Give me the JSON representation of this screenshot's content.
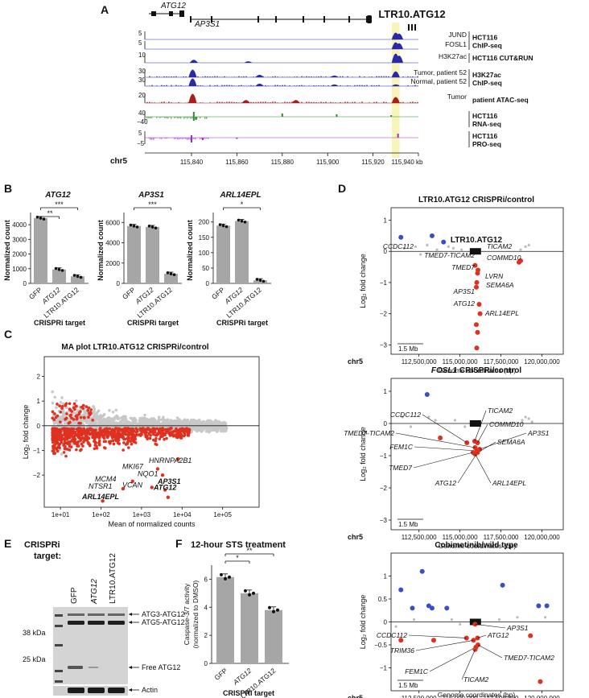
{
  "panels": {
    "A": {
      "label": "A",
      "genes": {
        "atg12": "ATG12",
        "ap3s1": "AP3S1"
      },
      "element": "LTR10.ATG12",
      "chrom": "chr5",
      "x_ticks": [
        "115,840",
        "115,860",
        "115,880",
        "115,900",
        "115,920",
        "115,940 kb"
      ],
      "x_values_kb": [
        115840,
        115860,
        115880,
        115900,
        115920,
        115940
      ],
      "highlight_kb": [
        115929,
        115931
      ],
      "tracks": [
        {
          "scale": "5",
          "name": "JUND",
          "group": "HCT116",
          "group2": "ChIP-seq",
          "color": "#2a2aa8"
        },
        {
          "scale": "5",
          "name": "FOSL1",
          "color": "#2a2aa8"
        },
        {
          "scale": "10",
          "name": "H3K27ac",
          "group": "HCT116 CUT&RUN",
          "color": "#2a2aa8"
        },
        {
          "scale": "30",
          "name": "Tumor, patient 52",
          "group": "H3K27ac",
          "group2": "ChIP-seq",
          "color": "#2a2aa8"
        },
        {
          "scale": "30",
          "name": "Normal, patient 52",
          "color": "#2a2aa8"
        },
        {
          "scale": "20",
          "name": "Tumor",
          "group": "patient ATAC-seq",
          "color": "#a81e1e"
        },
        {
          "scale": "40",
          "scale_neg": "−40",
          "group": "HCT116",
          "group2": "RNA-seq",
          "color": "#2e8b2e"
        },
        {
          "scale": "5",
          "scale_neg": "−5",
          "group": "HCT116",
          "group2": "PRO-seq",
          "color": "#9b30c8"
        }
      ]
    },
    "B": {
      "label": "B",
      "ylabel": "Normalized count",
      "xtitle": "CRISPRi target",
      "groups": [
        "GFP",
        "ATG12",
        "LTR10.ATG12"
      ],
      "charts": [
        {
          "title": "ATG12",
          "ylim": [
            0,
            4500
          ],
          "ticks": [
            "0",
            "1000",
            "2000",
            "3000",
            "4000"
          ],
          "tick_values": [
            0,
            1000,
            2000,
            3000,
            4000
          ],
          "values": [
            4450,
            950,
            480
          ],
          "sig": [
            "**",
            "***"
          ]
        },
        {
          "title": "AP3S1",
          "ylim": [
            0,
            6500
          ],
          "ticks": [
            "0",
            "2000",
            "4000",
            "6000"
          ],
          "tick_values": [
            0,
            2000,
            4000,
            6000
          ],
          "values": [
            5650,
            5550,
            950
          ],
          "sig": [
            "***"
          ]
        },
        {
          "title": "ARL14EPL",
          "ylim": [
            0,
            215
          ],
          "ticks": [
            "0",
            "50",
            "100",
            "150",
            "200"
          ],
          "tick_values": [
            0,
            50,
            100,
            150,
            200
          ],
          "values": [
            188,
            203,
            10
          ],
          "sig": [
            "*"
          ]
        }
      ]
    },
    "C": {
      "label": "C",
      "title": "MA plot LTR10.ATG12 CRISPRi/control",
      "xlabel": "Mean of normalized counts",
      "ylabel": "Log₂ fold change",
      "x_ticks": [
        "1e+01",
        "1e+02",
        "1e+03",
        "1e+04",
        "1e+05"
      ],
      "y_ticks": [
        "−2",
        "−1",
        "0",
        "1",
        "2"
      ],
      "genes": [
        {
          "name": "HNRNPA2B1",
          "bold": false,
          "x": 8000,
          "y": -1.35
        },
        {
          "name": "MKI67",
          "bold": false,
          "x": 2500,
          "y": -1.75
        },
        {
          "name": "NQO1",
          "bold": false,
          "x": 3300,
          "y": -2.0
        },
        {
          "name": "MCM4",
          "bold": false,
          "x": 600,
          "y": -2.25
        },
        {
          "name": "VCAN",
          "bold": false,
          "x": 1800,
          "y": -2.5
        },
        {
          "name": "NTSR1",
          "bold": false,
          "x": 350,
          "y": -2.55
        },
        {
          "name": "AP3S1",
          "bold": true,
          "x": 3800,
          "y": -2.6
        },
        {
          "name": "ATG12",
          "bold": true,
          "x": 4500,
          "y": -2.9
        },
        {
          "name": "ARL14EPL",
          "bold": true,
          "x": 110,
          "y": -3.05
        }
      ]
    },
    "D": {
      "label": "D",
      "chrom": "chr5",
      "xlabel": "Genome coordinates (bp)",
      "ylabel": "Log₂ fold change",
      "scale_bar": "1.5 Mb",
      "x_ticks": [
        "112,500,000",
        "115,000,000",
        "117,500,000",
        "120,000,000"
      ],
      "subplots": [
        {
          "title": "LTR10.ATG12 CRISPRi/control",
          "element_label": "LTR10.ATG12",
          "y_ticks": [
            "−3",
            "−2",
            "−1",
            "0",
            "1"
          ],
          "genes": [
            "CCDC112",
            "TICAM2",
            "TMED7-TICAM2",
            "COMMD10",
            "TMED7",
            "LVRN",
            "SEMA6A",
            "AP3S1",
            "ATG12",
            "ARL14EPL"
          ]
        },
        {
          "title": "FOSL1 CRISPRi/control",
          "title_italic": "FOSL1",
          "title_rest": " CRISPRi/control",
          "y_ticks": [
            "−3",
            "−2",
            "−1",
            "0",
            "1"
          ],
          "genes": [
            "CCDC112",
            "TICAM2",
            "COMMD10",
            "TMED7-TICAM2",
            "AP3S1",
            "FEM1C",
            "SEMA6A",
            "TMED7",
            "ATG12",
            "ARL14EPL"
          ]
        },
        {
          "title": "Cobimetinib/wild type",
          "y_ticks": [
            "−1",
            "−0.5",
            "0",
            "0.5",
            "1"
          ],
          "genes": [
            "AP3S1",
            "CCDC112",
            "ATG12",
            "TRIM36",
            "TMED7-TICAM2",
            "FEM1C",
            "TICAM2"
          ]
        }
      ]
    },
    "E": {
      "label": "E",
      "title_line1": "CRISPRi",
      "title_line2": "target:",
      "lanes": [
        "GFP",
        "ATG12",
        "LTR10.ATG12"
      ],
      "markers": [
        "38 kDa",
        "25 kDa"
      ],
      "bands": [
        "ATG3-ATG12",
        "ATG5-ATG12",
        "Free ATG12",
        "Actin"
      ]
    },
    "F": {
      "label": "F",
      "title": "12-hour STS treatment",
      "ylabel_line1": "Caspase-3/7 activity",
      "ylabel_line2": "(normalized to DMSO)",
      "xtitle": "CRISPRi target",
      "groups": [
        "GFP",
        "ATG12",
        "LTR10.ATG12"
      ],
      "values": [
        6.15,
        5.0,
        3.8
      ],
      "ylim": [
        0,
        7
      ],
      "ticks": [
        "0",
        "2",
        "4",
        "6"
      ],
      "tick_values": [
        0,
        2,
        4,
        6
      ],
      "sig": [
        "*",
        "**"
      ]
    }
  },
  "chart_data": [
    {
      "type": "bar",
      "title": "ATG12",
      "categories": [
        "GFP",
        "ATG12",
        "LTR10.ATG12"
      ],
      "values": [
        4450,
        950,
        480
      ],
      "ylabel": "Normalized count",
      "xlabel": "CRISPRi target",
      "ylim": [
        0,
        4500
      ]
    },
    {
      "type": "bar",
      "title": "AP3S1",
      "categories": [
        "GFP",
        "ATG12",
        "LTR10.ATG12"
      ],
      "values": [
        5650,
        5550,
        950
      ],
      "ylabel": "Normalized count",
      "xlabel": "CRISPRi target",
      "ylim": [
        0,
        6500
      ]
    },
    {
      "type": "bar",
      "title": "ARL14EPL",
      "categories": [
        "GFP",
        "ATG12",
        "LTR10.ATG12"
      ],
      "values": [
        188,
        203,
        10
      ],
      "ylabel": "Normalized count",
      "xlabel": "CRISPRi target",
      "ylim": [
        0,
        215
      ]
    },
    {
      "type": "scatter",
      "title": "MA plot LTR10.ATG12 CRISPRi/control",
      "xlabel": "Mean of normalized counts",
      "ylabel": "Log₂ fold change",
      "xscale": "log",
      "xlim": [
        10,
        100000
      ],
      "ylim": [
        -3.3,
        2.8
      ]
    },
    {
      "type": "bar",
      "title": "12-hour STS treatment",
      "categories": [
        "GFP",
        "ATG12",
        "LTR10.ATG12"
      ],
      "values": [
        6.15,
        5.0,
        3.8
      ],
      "ylabel": "Caspase-3/7 activity (normalized to DMSO)",
      "xlabel": "CRISPRi target",
      "ylim": [
        0,
        7
      ]
    }
  ]
}
